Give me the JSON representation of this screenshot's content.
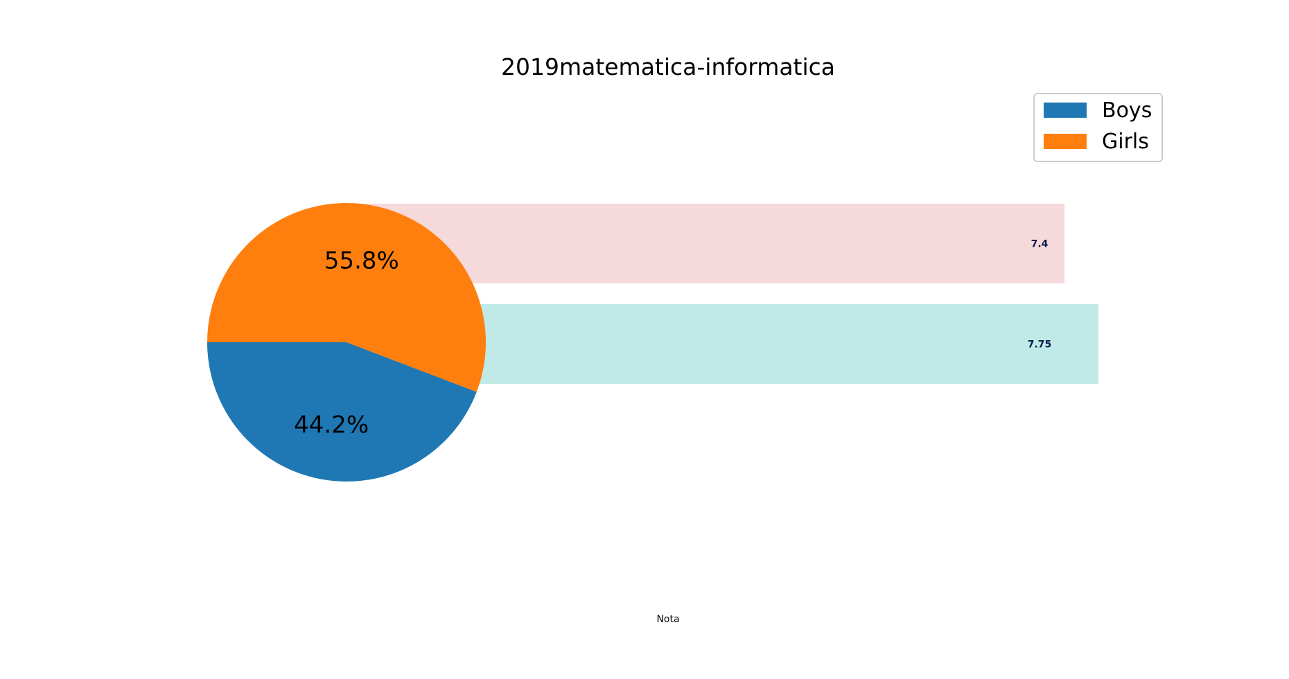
{
  "title": "2019matematica-informatica",
  "colors": {
    "boys": "#1f77b4",
    "girls": "#ff7f0e",
    "bar_top": "#f5d9db",
    "bar_bottom": "#bfeae8",
    "bar_label": "#0b1a4a"
  },
  "chart_data": [
    {
      "type": "pie",
      "slices": [
        {
          "name": "Boys",
          "value": 44.2,
          "label": "44.2%"
        },
        {
          "name": "Girls",
          "value": 55.8,
          "label": "55.8%"
        }
      ],
      "legend": {
        "placement": "top-right",
        "entries": [
          "Boys",
          "Girls"
        ]
      }
    },
    {
      "type": "bar",
      "orientation": "horizontal",
      "xlabel": "Nota",
      "bars": [
        {
          "value": 7.4,
          "label": "7.4",
          "color_key": "bar_top"
        },
        {
          "value": 7.75,
          "label": "7.75",
          "color_key": "bar_bottom"
        }
      ],
      "xlim": [
        0,
        8
      ]
    }
  ]
}
